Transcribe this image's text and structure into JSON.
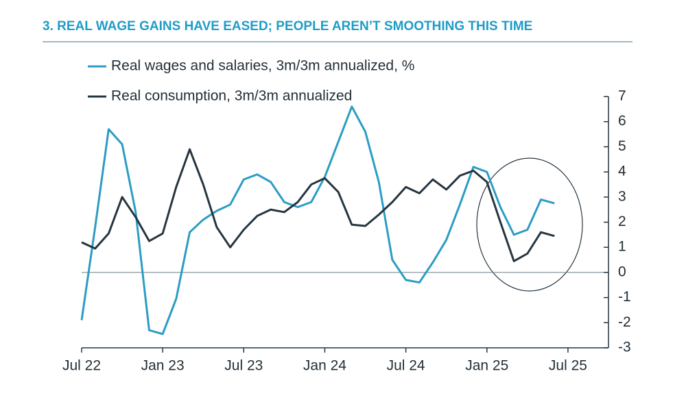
{
  "chart_data": {
    "type": "line",
    "title": "3. REAL WAGE GAINS HAVE EASED; PEOPLE AREN’T SMOOTHING THIS TIME",
    "x": [
      0,
      1,
      2,
      3,
      4,
      5,
      6,
      7,
      8,
      9,
      10,
      11,
      12,
      13,
      14,
      15,
      16,
      17,
      18,
      19,
      20,
      21,
      22,
      23,
      24,
      25,
      26,
      27,
      28,
      29,
      30,
      31,
      32,
      33,
      34,
      35
    ],
    "series": [
      {
        "name": "Real wages and salaries, 3m/3m annualized, %",
        "color": "#2b9cc4",
        "values": [
          -1.9,
          1.8,
          5.7,
          5.1,
          2.4,
          -2.3,
          -2.45,
          -1.05,
          1.6,
          2.1,
          2.45,
          2.7,
          3.7,
          3.9,
          3.6,
          2.8,
          2.6,
          2.8,
          3.8,
          5.2,
          6.6,
          5.6,
          3.6,
          0.5,
          -0.3,
          -0.4,
          0.4,
          1.3,
          2.7,
          4.2,
          4.0,
          2.6,
          1.5,
          1.7,
          2.9,
          2.75
        ]
      },
      {
        "name": "Real consumption, 3m/3m annualized",
        "color": "#253540",
        "values": [
          1.2,
          0.95,
          1.55,
          3.0,
          2.2,
          1.25,
          1.55,
          3.4,
          4.9,
          3.5,
          1.8,
          1.0,
          1.7,
          2.25,
          2.5,
          2.4,
          2.8,
          3.5,
          3.75,
          3.2,
          1.9,
          1.85,
          2.3,
          2.8,
          3.4,
          3.15,
          3.7,
          3.3,
          3.85,
          4.05,
          3.6,
          2.0,
          0.45,
          0.75,
          1.6,
          1.45
        ]
      }
    ],
    "xlim": [
      0,
      39
    ],
    "xticks": [
      {
        "value": 0,
        "label": "Jul 22"
      },
      {
        "value": 6,
        "label": "Jan 23"
      },
      {
        "value": 12,
        "label": "Jul 23"
      },
      {
        "value": 18,
        "label": "Jan 24"
      },
      {
        "value": 24,
        "label": "Jul 24"
      },
      {
        "value": 30,
        "label": "Jan 25"
      },
      {
        "value": 36,
        "label": "Jul 25"
      }
    ],
    "ylim": [
      -3,
      7
    ],
    "yticks": [
      7,
      6,
      5,
      4,
      3,
      2,
      1,
      0,
      -1,
      -2,
      -3
    ]
  }
}
